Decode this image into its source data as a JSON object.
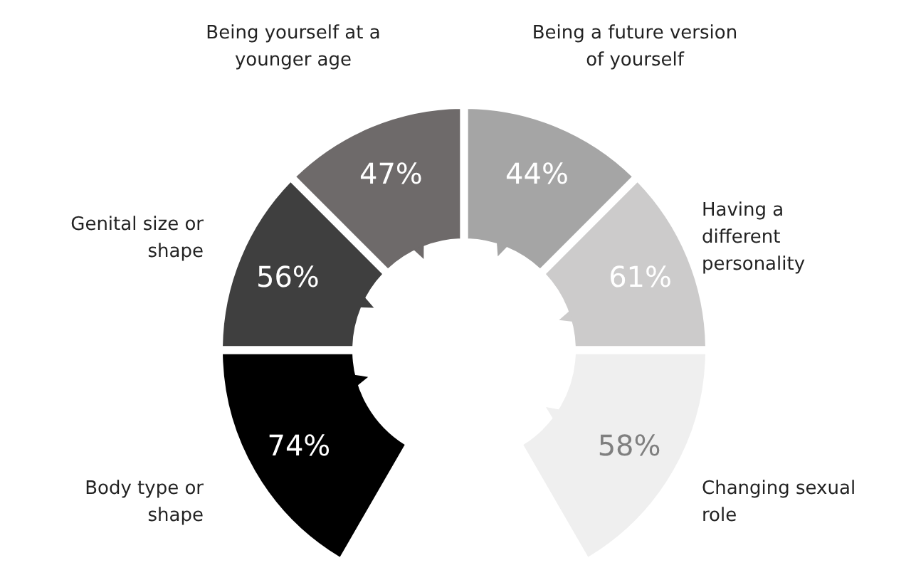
{
  "chart_data": {
    "type": "other",
    "categories": [
      "Body type or shape",
      "Genital size or shape",
      "Being yourself at a younger age",
      "Being a future version of yourself",
      "Having a different personality",
      "Changing sexual role"
    ],
    "values": [
      74,
      56,
      47,
      44,
      61,
      58
    ],
    "value_labels": [
      "74%",
      "56%",
      "47%",
      "44%",
      "61%",
      "58%"
    ],
    "colors": [
      "#000000",
      "#3f3f3f",
      "#6e6a6a",
      "#a5a5a5",
      "#cccbcb",
      "#efefef"
    ]
  }
}
